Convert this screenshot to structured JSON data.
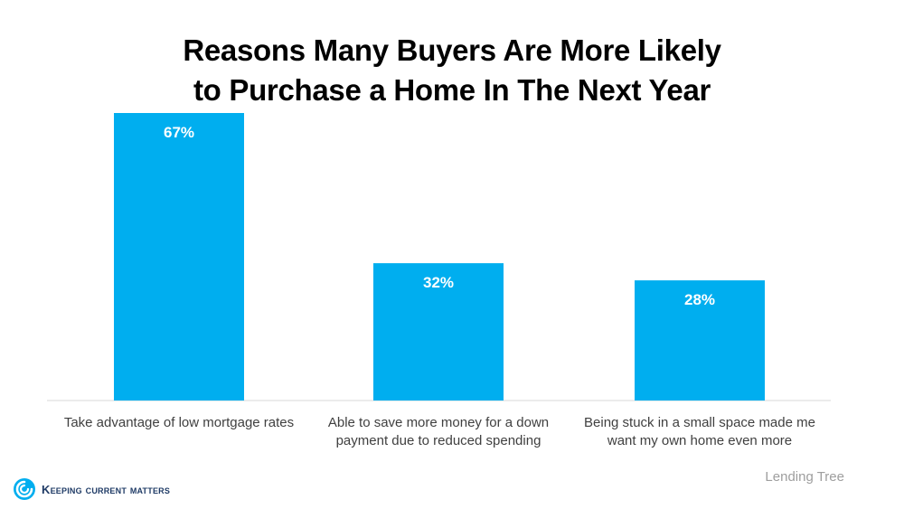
{
  "chart_data": {
    "type": "bar",
    "title_lines": [
      "Reasons Many Buyers Are More Likely",
      "to Purchase a Home In The Next Year"
    ],
    "categories": [
      [
        "Take advantage of low mortgage rates"
      ],
      [
        "Able to save more money for a down",
        "payment due to reduced spending"
      ],
      [
        "Being stuck in a small space made me",
        "want my own home even more"
      ]
    ],
    "values": [
      67,
      32,
      28
    ],
    "data_labels": [
      "67%",
      "32%",
      "28%"
    ],
    "ylim": [
      0,
      67
    ],
    "grid": false,
    "bar_color": "#00aeef"
  },
  "source": "Lending Tree",
  "brand": {
    "name": "Keeping Current Matters",
    "icon": "kcm-swirl-icon",
    "color": "#1f3b66"
  }
}
